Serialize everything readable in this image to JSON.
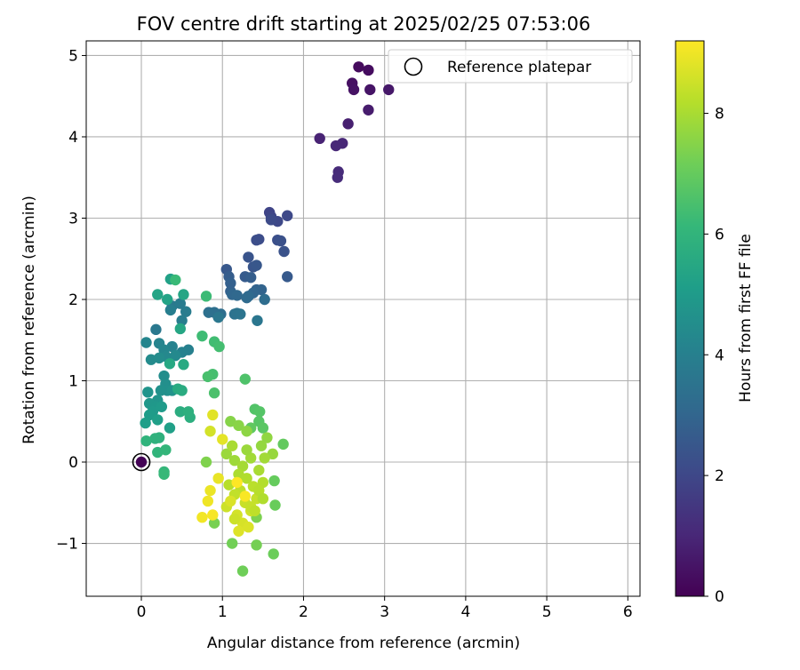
{
  "chart_data": {
    "type": "scatter",
    "title": "FOV centre drift starting at 2025/02/25 07:53:06",
    "xlabel": "Angular distance from reference (arcmin)",
    "ylabel": "Rotation from reference (arcmin)",
    "xlim": [
      -0.68,
      6.15
    ],
    "ylim": [
      -1.65,
      5.18
    ],
    "xticks": [
      0,
      1,
      2,
      3,
      4,
      5,
      6
    ],
    "yticks": [
      -1,
      0,
      1,
      2,
      3,
      4,
      5
    ],
    "xtick_labels": [
      "0",
      "1",
      "2",
      "3",
      "4",
      "5",
      "6"
    ],
    "ytick_labels": [
      "−1",
      "0",
      "1",
      "2",
      "3",
      "4",
      "5"
    ],
    "grid": true,
    "legend": {
      "position": "top-right",
      "entries": [
        "Reference platepar"
      ]
    },
    "reference_point": {
      "x": 0,
      "y": 0,
      "label": "Reference platepar"
    },
    "colorbar": {
      "label": "Hours from first FF file",
      "min": 0,
      "max": 9.2,
      "ticks": [
        0,
        2,
        4,
        6,
        8
      ],
      "tick_labels": [
        "0",
        "2",
        "4",
        "6",
        "8"
      ],
      "colormap": "viridis",
      "colors": [
        "#440154",
        "#482878",
        "#3e4989",
        "#31688e",
        "#26828e",
        "#1f9e89",
        "#35b779",
        "#6ece58",
        "#b5de2b",
        "#fde725"
      ]
    },
    "points": [
      [
        0.0,
        0.0,
        0.05
      ],
      [
        2.68,
        4.86,
        0.25
      ],
      [
        2.8,
        4.82,
        0.3
      ],
      [
        2.6,
        4.66,
        0.4
      ],
      [
        2.62,
        4.58,
        0.45
      ],
      [
        2.82,
        4.58,
        0.5
      ],
      [
        3.05,
        4.58,
        0.6
      ],
      [
        2.8,
        4.33,
        0.7
      ],
      [
        2.55,
        4.16,
        0.8
      ],
      [
        2.2,
        3.98,
        0.9
      ],
      [
        2.48,
        3.92,
        1.0
      ],
      [
        2.4,
        3.89,
        1.05
      ],
      [
        2.43,
        3.57,
        1.1
      ],
      [
        2.42,
        3.5,
        1.15
      ],
      [
        1.58,
        3.07,
        1.9
      ],
      [
        1.6,
        3.02,
        1.95
      ],
      [
        1.68,
        2.96,
        2.0
      ],
      [
        1.8,
        3.03,
        2.05
      ],
      [
        1.6,
        2.98,
        2.1
      ],
      [
        1.45,
        2.74,
        2.15
      ],
      [
        1.42,
        2.73,
        2.2
      ],
      [
        1.68,
        2.73,
        2.25
      ],
      [
        1.72,
        2.72,
        2.3
      ],
      [
        1.76,
        2.59,
        2.35
      ],
      [
        1.32,
        2.52,
        2.4
      ],
      [
        1.38,
        2.4,
        2.45
      ],
      [
        1.42,
        2.42,
        2.5
      ],
      [
        1.05,
        2.37,
        2.55
      ],
      [
        1.8,
        2.28,
        2.6
      ],
      [
        1.28,
        2.28,
        2.65
      ],
      [
        1.08,
        2.28,
        2.7
      ],
      [
        1.35,
        2.27,
        2.75
      ],
      [
        1.1,
        2.2,
        2.8
      ],
      [
        1.1,
        2.1,
        2.85
      ],
      [
        1.42,
        2.12,
        2.9
      ],
      [
        1.48,
        2.12,
        2.95
      ],
      [
        1.38,
        2.08,
        3.0
      ],
      [
        1.12,
        2.06,
        3.05
      ],
      [
        1.18,
        2.05,
        3.1
      ],
      [
        1.32,
        2.04,
        3.15
      ],
      [
        1.3,
        2.02,
        3.2
      ],
      [
        1.52,
        2.0,
        3.25
      ],
      [
        0.98,
        1.82,
        3.3
      ],
      [
        0.9,
        1.84,
        3.35
      ],
      [
        0.83,
        1.84,
        3.4
      ],
      [
        1.15,
        1.82,
        3.45
      ],
      [
        1.18,
        1.83,
        3.5
      ],
      [
        1.22,
        1.82,
        3.55
      ],
      [
        1.43,
        1.74,
        3.6
      ],
      [
        0.95,
        1.78,
        3.65
      ],
      [
        0.18,
        1.63,
        3.7
      ],
      [
        0.38,
        1.92,
        3.75
      ],
      [
        0.48,
        1.95,
        3.8
      ],
      [
        0.55,
        1.85,
        3.85
      ],
      [
        0.5,
        1.74,
        3.9
      ],
      [
        0.36,
        1.87,
        3.95
      ],
      [
        0.58,
        1.38,
        4.0
      ],
      [
        0.5,
        1.35,
        4.05
      ],
      [
        0.38,
        1.42,
        4.1
      ],
      [
        0.22,
        1.46,
        4.15
      ],
      [
        0.06,
        1.47,
        4.2
      ],
      [
        0.28,
        1.38,
        4.25
      ],
      [
        0.3,
        1.3,
        4.3
      ],
      [
        0.42,
        1.31,
        4.35
      ],
      [
        0.12,
        1.26,
        4.4
      ],
      [
        0.22,
        1.28,
        4.45
      ],
      [
        0.28,
        1.06,
        4.5
      ],
      [
        0.3,
        0.96,
        4.55
      ],
      [
        0.32,
        0.88,
        4.6
      ],
      [
        0.24,
        0.88,
        4.65
      ],
      [
        0.38,
        0.88,
        4.7
      ],
      [
        0.08,
        0.86,
        4.75
      ],
      [
        0.2,
        0.76,
        4.8
      ],
      [
        0.1,
        0.72,
        4.85
      ],
      [
        0.18,
        0.68,
        4.9
      ],
      [
        0.14,
        0.62,
        4.95
      ],
      [
        0.25,
        0.68,
        5.0
      ],
      [
        0.1,
        0.58,
        5.05
      ],
      [
        0.05,
        0.48,
        5.1
      ],
      [
        0.2,
        0.52,
        5.15
      ],
      [
        0.35,
        0.42,
        5.2
      ],
      [
        0.36,
        2.25,
        5.25
      ],
      [
        0.32,
        2.0,
        5.3
      ],
      [
        0.2,
        2.06,
        5.35
      ],
      [
        0.52,
        2.06,
        5.4
      ],
      [
        0.48,
        1.64,
        5.45
      ],
      [
        0.35,
        1.21,
        5.5
      ],
      [
        0.52,
        1.2,
        5.55
      ],
      [
        0.45,
        0.9,
        5.6
      ],
      [
        0.5,
        0.88,
        5.65
      ],
      [
        0.48,
        0.62,
        5.7
      ],
      [
        0.6,
        0.55,
        5.75
      ],
      [
        0.58,
        0.62,
        5.8
      ],
      [
        0.22,
        0.3,
        5.85
      ],
      [
        0.17,
        0.29,
        5.9
      ],
      [
        0.06,
        0.26,
        5.95
      ],
      [
        0.2,
        0.12,
        6.0
      ],
      [
        0.3,
        0.15,
        6.05
      ],
      [
        0.28,
        -0.12,
        6.1
      ],
      [
        0.28,
        -0.15,
        6.15
      ],
      [
        0.42,
        2.24,
        6.2
      ],
      [
        0.8,
        2.04,
        6.25
      ],
      [
        0.75,
        1.55,
        6.3
      ],
      [
        0.9,
        1.48,
        6.35
      ],
      [
        0.96,
        1.42,
        6.4
      ],
      [
        0.88,
        1.08,
        6.45
      ],
      [
        0.82,
        1.05,
        6.5
      ],
      [
        0.9,
        0.85,
        6.55
      ],
      [
        1.28,
        1.02,
        6.6
      ],
      [
        1.4,
        0.65,
        6.65
      ],
      [
        1.46,
        0.62,
        6.7
      ],
      [
        1.45,
        0.5,
        6.75
      ],
      [
        1.5,
        0.42,
        6.8
      ],
      [
        1.35,
        0.42,
        6.9
      ],
      [
        1.75,
        0.22,
        6.95
      ],
      [
        1.64,
        -0.23,
        7.0
      ],
      [
        1.65,
        -0.53,
        7.05
      ],
      [
        1.63,
        -1.13,
        7.1
      ],
      [
        1.25,
        -1.34,
        7.15
      ],
      [
        1.12,
        -1.0,
        7.2
      ],
      [
        1.42,
        -1.02,
        7.25
      ],
      [
        0.9,
        -0.75,
        7.3
      ],
      [
        1.42,
        -0.68,
        7.35
      ],
      [
        0.8,
        0.0,
        7.4
      ],
      [
        1.1,
        0.5,
        7.5
      ],
      [
        1.2,
        0.45,
        7.55
      ],
      [
        1.3,
        0.38,
        7.6
      ],
      [
        1.55,
        0.3,
        7.65
      ],
      [
        1.48,
        0.2,
        7.7
      ],
      [
        1.62,
        0.1,
        7.75
      ],
      [
        1.05,
        0.1,
        7.8
      ],
      [
        1.15,
        0.02,
        7.85
      ],
      [
        1.35,
        0.05,
        7.9
      ],
      [
        1.25,
        -0.05,
        7.95
      ],
      [
        1.45,
        -0.1,
        8.0
      ],
      [
        1.2,
        -0.15,
        8.05
      ],
      [
        1.3,
        -0.2,
        8.1
      ],
      [
        1.5,
        -0.25,
        8.15
      ],
      [
        1.08,
        -0.28,
        8.2
      ],
      [
        1.38,
        -0.3,
        8.25
      ],
      [
        1.22,
        -0.35,
        8.3
      ],
      [
        1.15,
        -0.4,
        8.35
      ],
      [
        1.42,
        -0.45,
        8.4
      ],
      [
        1.28,
        -0.5,
        8.45
      ],
      [
        1.05,
        -0.55,
        8.5
      ],
      [
        1.35,
        -0.6,
        8.55
      ],
      [
        1.18,
        -0.65,
        8.6
      ],
      [
        1.25,
        -0.75,
        8.65
      ],
      [
        1.32,
        -0.8,
        8.7
      ],
      [
        1.2,
        -0.85,
        8.75
      ],
      [
        0.88,
        0.58,
        8.8
      ],
      [
        1.0,
        0.28,
        8.85
      ],
      [
        0.95,
        -0.2,
        8.9
      ],
      [
        0.85,
        -0.35,
        8.95
      ],
      [
        0.82,
        -0.48,
        9.0
      ],
      [
        0.75,
        -0.68,
        9.05
      ],
      [
        0.88,
        -0.65,
        9.1
      ],
      [
        1.28,
        -0.42,
        9.15
      ],
      [
        1.18,
        -0.25,
        9.2
      ],
      [
        1.35,
        -0.55,
        8.4
      ],
      [
        1.45,
        -0.35,
        8.2
      ],
      [
        1.12,
        0.2,
        8.0
      ],
      [
        1.52,
        0.05,
        7.9
      ],
      [
        1.4,
        -0.6,
        8.3
      ],
      [
        0.85,
        0.38,
        8.6
      ],
      [
        1.1,
        -0.48,
        8.7
      ],
      [
        1.3,
        0.15,
        7.8
      ],
      [
        1.15,
        -0.7,
        8.5
      ],
      [
        1.5,
        -0.45,
        8.1
      ]
    ]
  }
}
